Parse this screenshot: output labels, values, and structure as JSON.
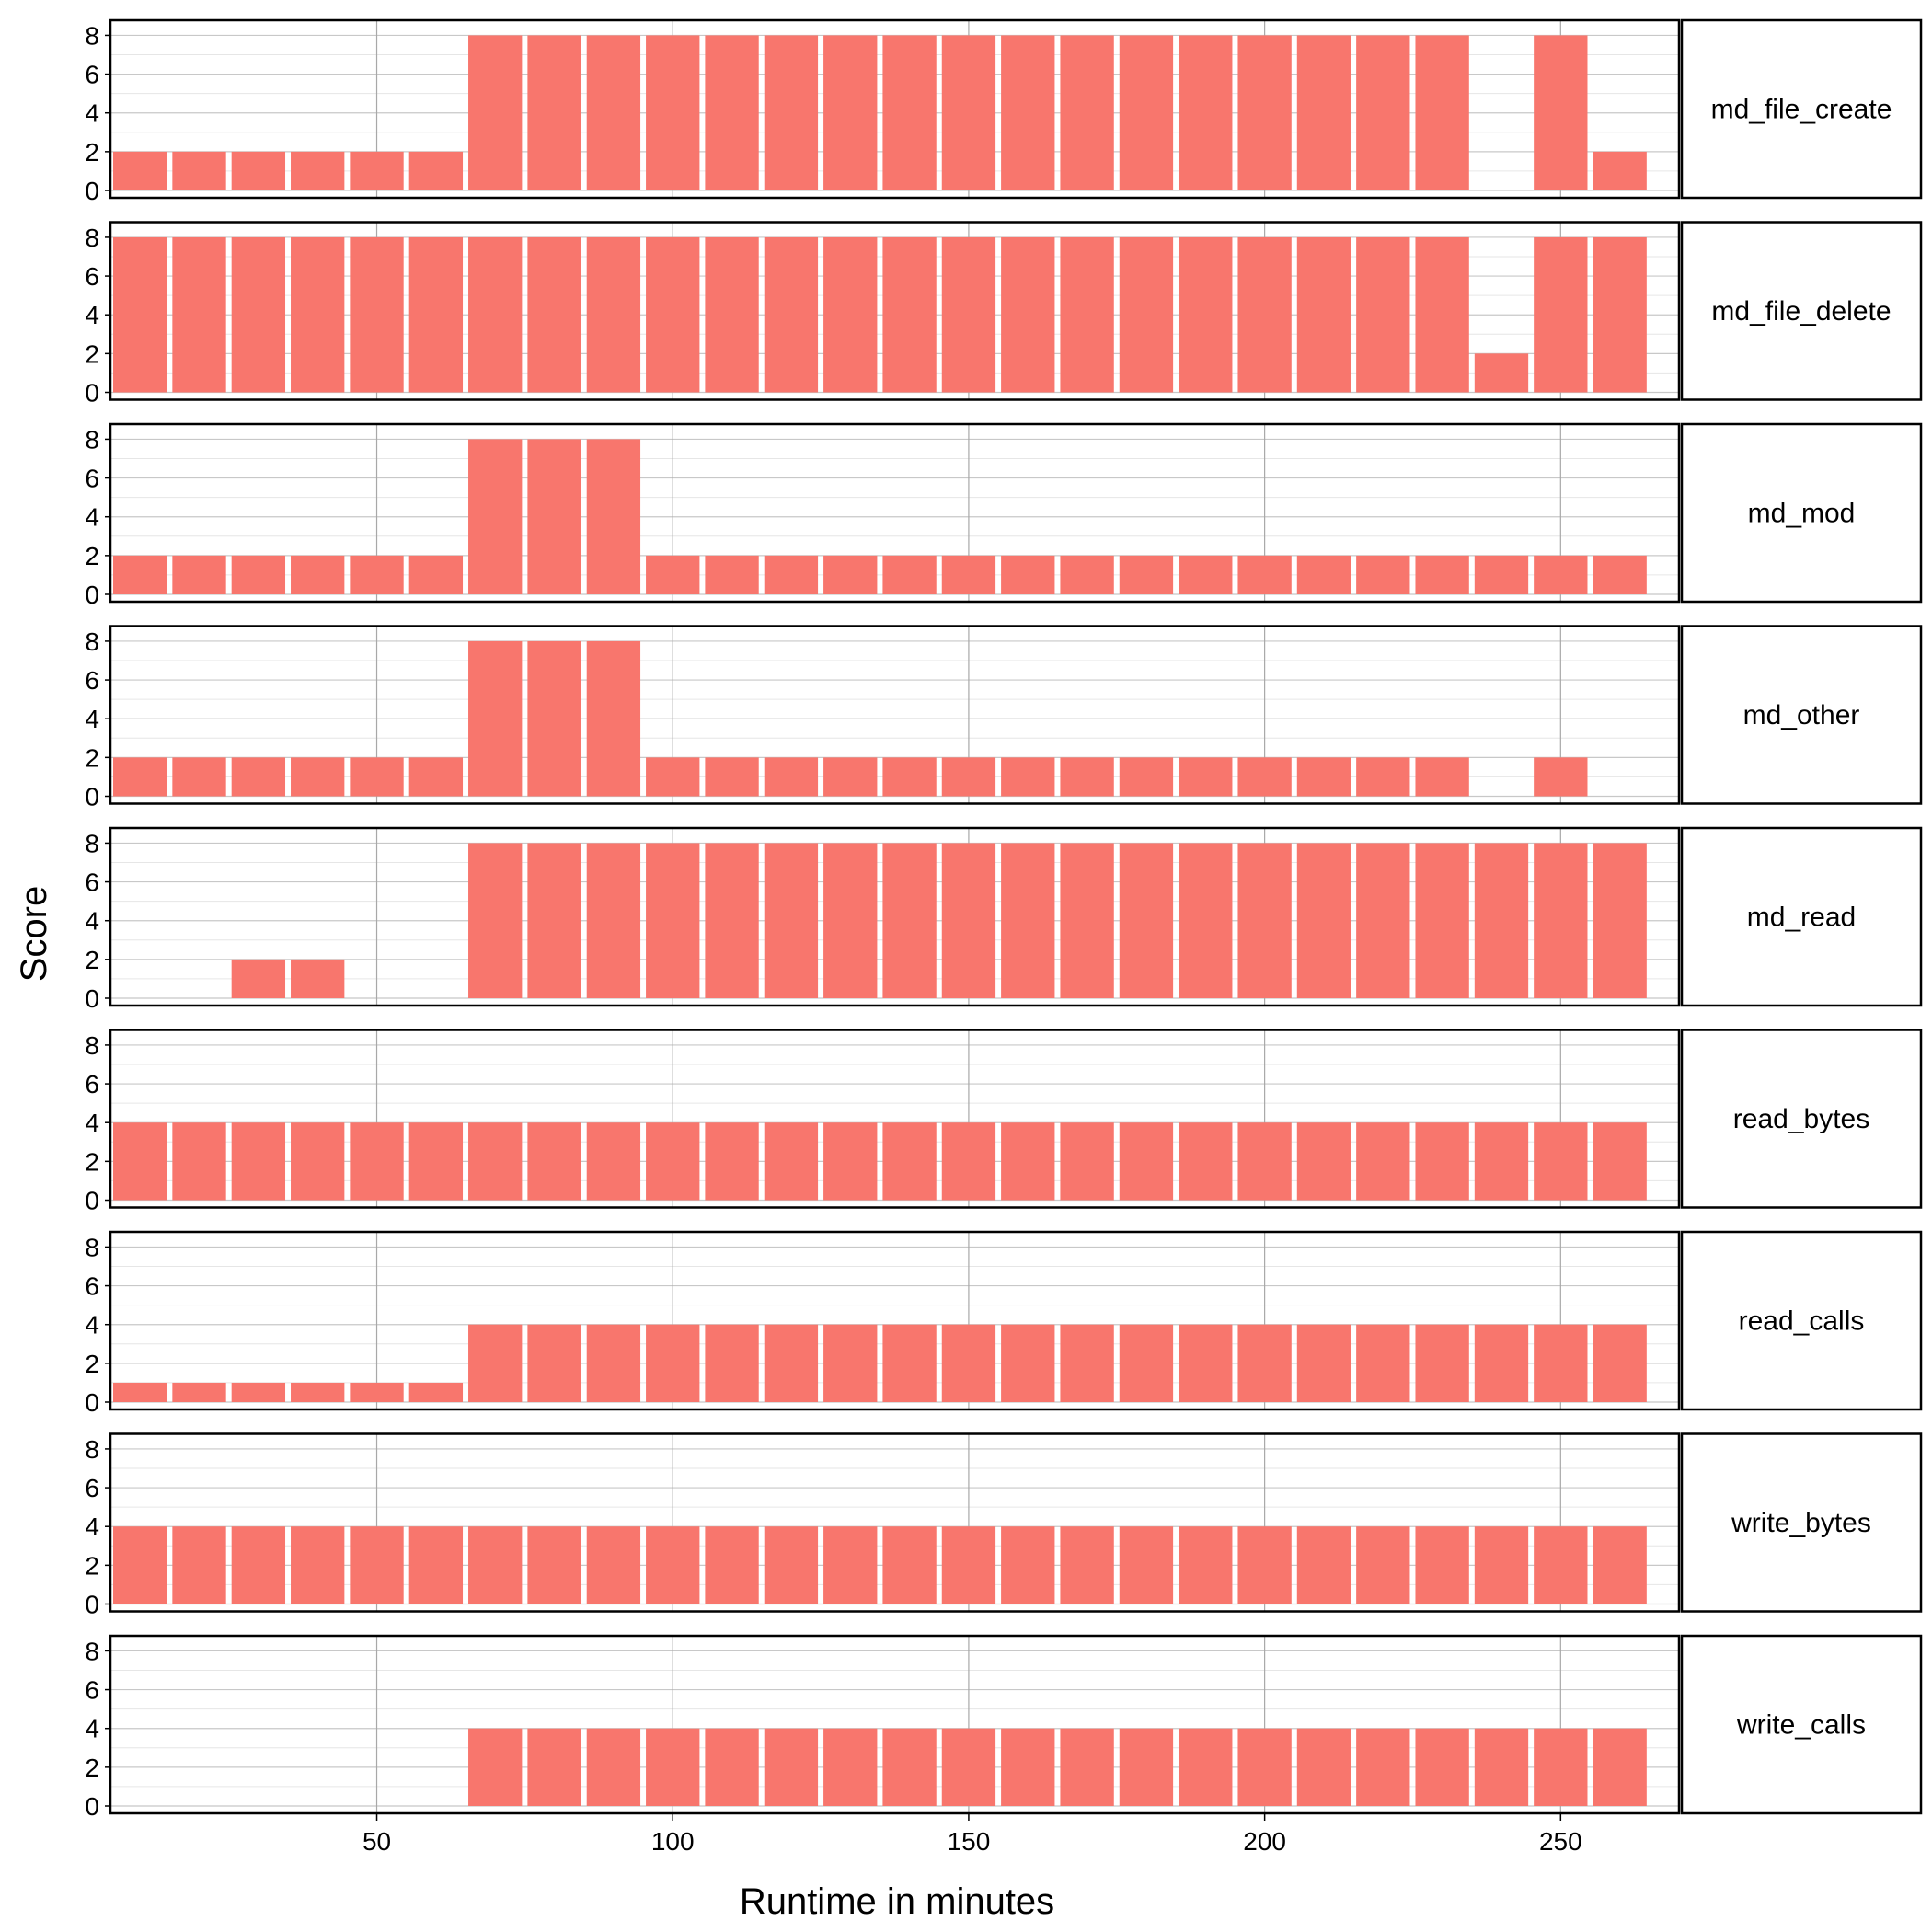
{
  "chart_data": {
    "type": "bar",
    "layout": "faceted-rows",
    "xlabel": "Runtime in minutes",
    "ylabel": "Score",
    "xlim": [
      5,
      270
    ],
    "xticks": [
      50,
      100,
      150,
      200,
      250
    ],
    "ylim": [
      0,
      8.4
    ],
    "yticks": [
      0,
      2,
      4,
      6,
      8
    ],
    "grid": true,
    "bar_color": "#F8766D",
    "x": [
      10,
      20,
      30,
      40,
      50,
      60,
      70,
      80,
      90,
      100,
      110,
      120,
      130,
      140,
      150,
      160,
      170,
      180,
      190,
      200,
      210,
      220,
      230,
      240,
      250,
      260
    ],
    "facets": [
      {
        "name": "md_file_create",
        "values": [
          2,
          2,
          2,
          2,
          2,
          2,
          8,
          8,
          8,
          8,
          8,
          8,
          8,
          8,
          8,
          8,
          8,
          8,
          8,
          8,
          8,
          8,
          8,
          0,
          8,
          2
        ]
      },
      {
        "name": "md_file_delete",
        "values": [
          8,
          8,
          8,
          8,
          8,
          8,
          8,
          8,
          8,
          8,
          8,
          8,
          8,
          8,
          8,
          8,
          8,
          8,
          8,
          8,
          8,
          8,
          8,
          2,
          8,
          8
        ]
      },
      {
        "name": "md_mod",
        "values": [
          2,
          2,
          2,
          2,
          2,
          2,
          8,
          8,
          8,
          2,
          2,
          2,
          2,
          2,
          2,
          2,
          2,
          2,
          2,
          2,
          2,
          2,
          2,
          2,
          2,
          2
        ]
      },
      {
        "name": "md_other",
        "values": [
          2,
          2,
          2,
          2,
          2,
          2,
          8,
          8,
          8,
          2,
          2,
          2,
          2,
          2,
          2,
          2,
          2,
          2,
          2,
          2,
          2,
          2,
          2,
          0,
          2,
          0
        ]
      },
      {
        "name": "md_read",
        "values": [
          0,
          0,
          2,
          2,
          0,
          0,
          8,
          8,
          8,
          8,
          8,
          8,
          8,
          8,
          8,
          8,
          8,
          8,
          8,
          8,
          8,
          8,
          8,
          8,
          8,
          8
        ]
      },
      {
        "name": "read_bytes",
        "values": [
          4,
          4,
          4,
          4,
          4,
          4,
          4,
          4,
          4,
          4,
          4,
          4,
          4,
          4,
          4,
          4,
          4,
          4,
          4,
          4,
          4,
          4,
          4,
          4,
          4,
          4
        ]
      },
      {
        "name": "read_calls",
        "values": [
          1,
          1,
          1,
          1,
          1,
          1,
          4,
          4,
          4,
          4,
          4,
          4,
          4,
          4,
          4,
          4,
          4,
          4,
          4,
          4,
          4,
          4,
          4,
          4,
          4,
          4
        ]
      },
      {
        "name": "write_bytes",
        "values": [
          4,
          4,
          4,
          4,
          4,
          4,
          4,
          4,
          4,
          4,
          4,
          4,
          4,
          4,
          4,
          4,
          4,
          4,
          4,
          4,
          4,
          4,
          4,
          4,
          4,
          4
        ]
      },
      {
        "name": "write_calls",
        "values": [
          0,
          0,
          0,
          0,
          0,
          0,
          4,
          4,
          4,
          4,
          4,
          4,
          4,
          4,
          4,
          4,
          4,
          4,
          4,
          4,
          4,
          4,
          4,
          4,
          4,
          4
        ]
      }
    ]
  }
}
